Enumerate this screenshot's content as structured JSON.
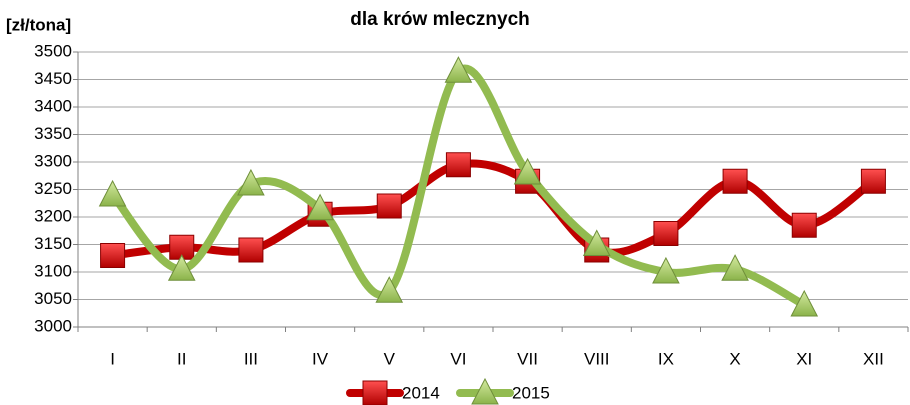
{
  "chart_data": {
    "type": "line",
    "title": "dla krów mlecznych",
    "y_label": "[zł/tona]",
    "categories": [
      "I",
      "II",
      "III",
      "IV",
      "V",
      "VI",
      "VII",
      "VIII",
      "IX",
      "X",
      "XI",
      "XII"
    ],
    "series": [
      {
        "name": "2014",
        "color": "#c00000",
        "marker": "square",
        "values": [
          3130,
          3145,
          3140,
          3205,
          3220,
          3295,
          3265,
          3140,
          3170,
          3265,
          3185,
          3265
        ]
      },
      {
        "name": "2015",
        "color": "#92bb50",
        "marker": "triangle",
        "values": [
          3240,
          3105,
          3260,
          3215,
          3065,
          3465,
          3280,
          3150,
          3100,
          3105,
          3040,
          null
        ]
      }
    ],
    "ylim": [
      3000,
      3500
    ],
    "yticks": [
      3000,
      3050,
      3100,
      3150,
      3200,
      3250,
      3300,
      3350,
      3400,
      3450,
      3500
    ],
    "grid": true,
    "smooth": true,
    "legend": "bottom"
  }
}
